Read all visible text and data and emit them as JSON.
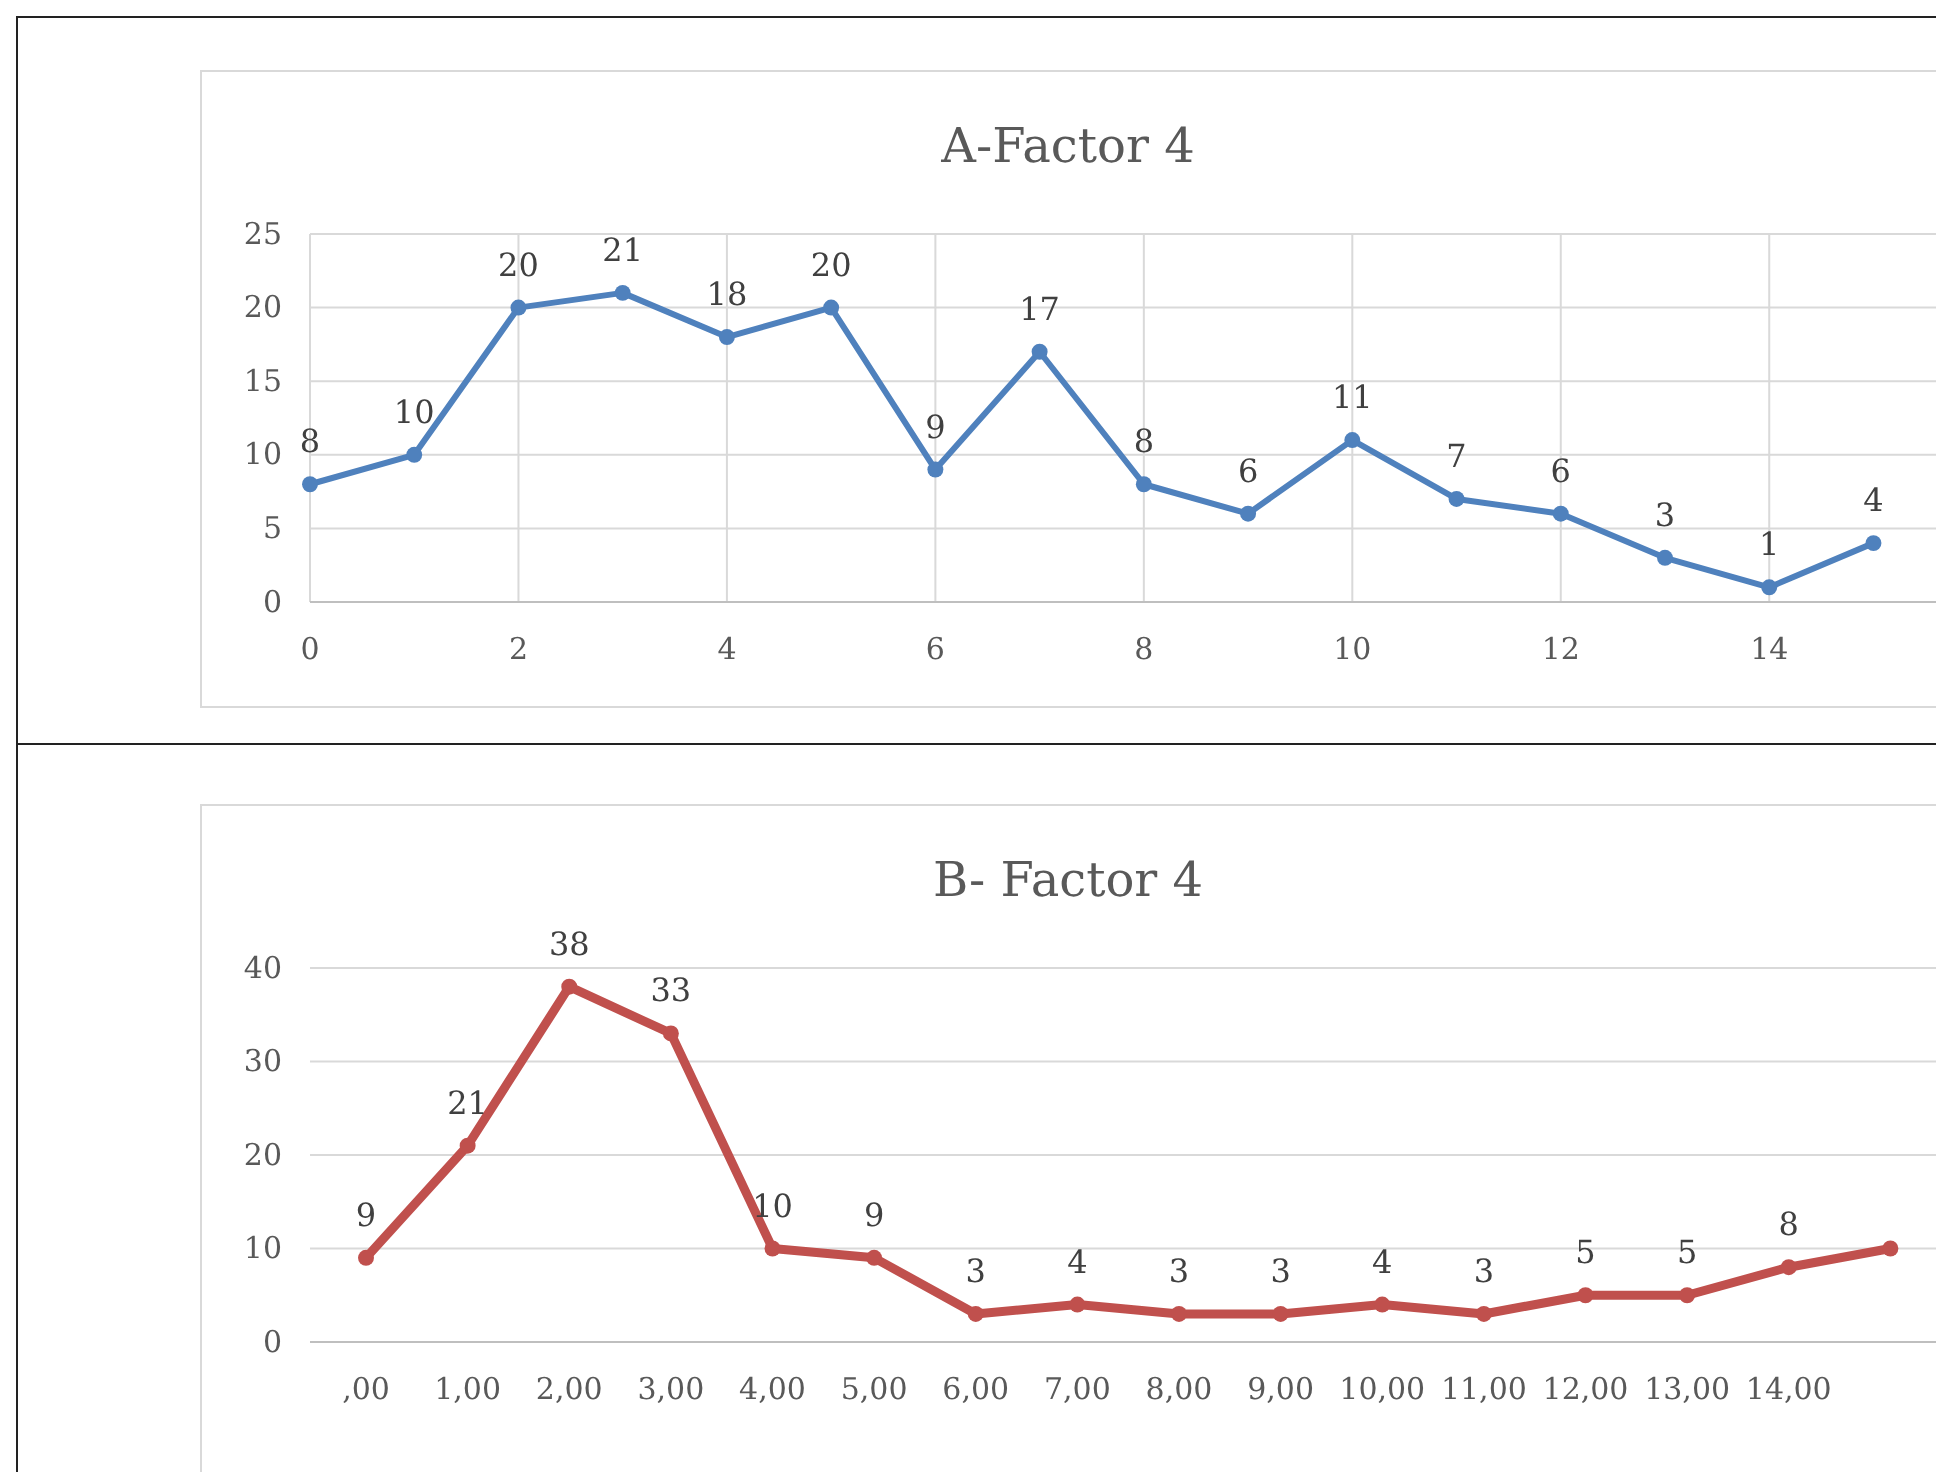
{
  "chart_data": [
    {
      "type": "line",
      "title": "A-Factor 4",
      "x": [
        0,
        1,
        2,
        3,
        4,
        5,
        6,
        7,
        8,
        9,
        10,
        11,
        12,
        13,
        14,
        15
      ],
      "xlim": [
        0,
        15.6
      ],
      "xticks": [
        0,
        2,
        4,
        6,
        8,
        10,
        12,
        14
      ],
      "ylim": [
        0,
        25
      ],
      "yticks": [
        0,
        5,
        10,
        15,
        20,
        25
      ],
      "grid": true,
      "marker": "circle",
      "data_labels": true,
      "series": [
        {
          "color": "#4f81bd",
          "values": [
            8,
            10,
            20,
            21,
            18,
            20,
            9,
            17,
            8,
            6,
            11,
            7,
            6,
            3,
            1,
            4
          ]
        }
      ]
    },
    {
      "type": "line",
      "title": "B- Factor 4",
      "categories": [
        ",00",
        "1,00",
        "2,00",
        "3,00",
        "4,00",
        "5,00",
        "6,00",
        "7,00",
        "8,00",
        "9,00",
        "10,00",
        "11,00",
        "12,00",
        "13,00",
        "14,00",
        null
      ],
      "ylim": [
        0,
        40
      ],
      "yticks": [
        0,
        10,
        20,
        30,
        40
      ],
      "grid": "y",
      "marker": "circle",
      "series": [
        {
          "color": "#c0504d",
          "values": [
            9,
            21,
            38,
            33,
            10,
            9,
            3,
            4,
            3,
            3,
            4,
            3,
            5,
            5,
            8,
            10
          ],
          "value_labels": [
            "9",
            "21",
            "38",
            "33",
            "10",
            "9",
            "3",
            "4",
            "3",
            "3",
            "4",
            "3",
            "5",
            "5",
            "8",
            null
          ]
        }
      ]
    }
  ]
}
